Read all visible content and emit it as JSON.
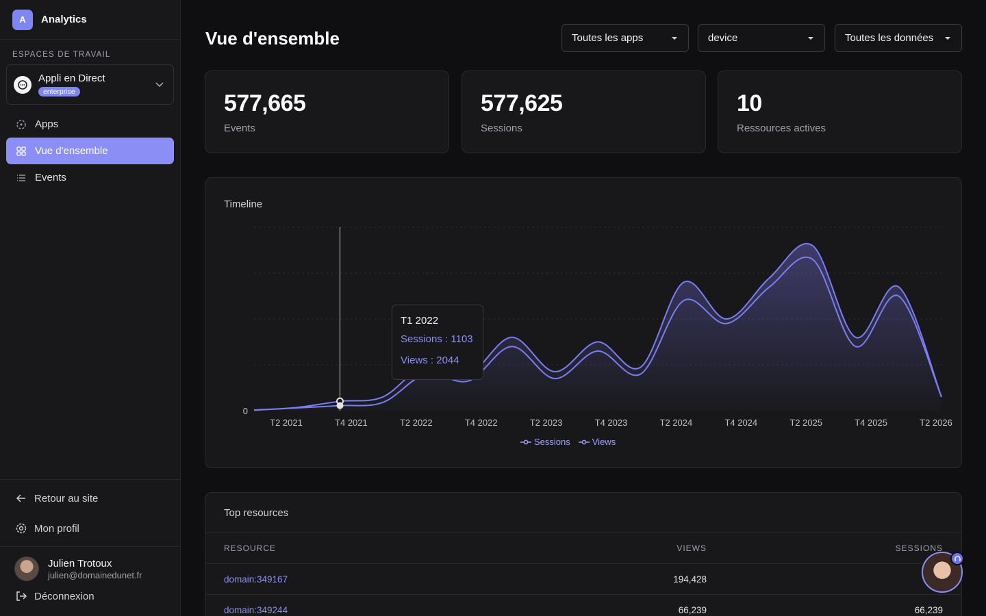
{
  "app": {
    "logo_letter": "A",
    "name": "Analytics"
  },
  "sidebar": {
    "section_label": "ESPACES DE TRAVAIL",
    "workspace": {
      "name": "Appli en Direct",
      "badge": "enterprise"
    },
    "items": [
      {
        "label": "Apps",
        "icon": "apps-icon",
        "active": false
      },
      {
        "label": "Vue d'ensemble",
        "icon": "grid-icon",
        "active": true
      },
      {
        "label": "Events",
        "icon": "list-icon",
        "active": false
      }
    ],
    "bottom_links": [
      {
        "label": "Retour au site",
        "icon": "arrow-left-icon"
      },
      {
        "label": "Mon profil",
        "icon": "gear-icon"
      }
    ],
    "user": {
      "name": "Julien Trotoux",
      "email": "julien@domainedunet.fr"
    },
    "logout_label": "Déconnexion"
  },
  "header": {
    "title": "Vue d'ensemble",
    "filters": [
      {
        "value": "Toutes les apps"
      },
      {
        "value": "device"
      },
      {
        "value": "Toutes les données"
      }
    ]
  },
  "stats": [
    {
      "value": "577,665",
      "label": "Events"
    },
    {
      "value": "577,625",
      "label": "Sessions"
    },
    {
      "value": "10",
      "label": "Ressources actives"
    }
  ],
  "timeline": {
    "title": "Timeline",
    "tooltip": {
      "title": "T1 2022",
      "sessions": "Sessions : 1103",
      "views": "Views : 2044"
    },
    "legend": [
      "Sessions",
      "Views"
    ],
    "colors": {
      "accent": "#8b8ff5",
      "line": "#7a7ef0"
    }
  },
  "chart_data": {
    "type": "area",
    "yticks": [
      "",
      "",
      "",
      "",
      "0"
    ],
    "xticks": [
      "T2 2021",
      "T4 2021",
      "T2 2022",
      "T4 2022",
      "T2 2023",
      "T4 2023",
      "T2 2024",
      "T4 2024",
      "T2 2025",
      "T4 2025",
      "T2 2026"
    ],
    "series": [
      {
        "name": "Sessions",
        "values": [
          100,
          600,
          1103,
          1800,
          8000,
          6500,
          14000,
          7000,
          13000,
          8000,
          24000,
          19000,
          27000,
          33000,
          14000,
          25000,
          3000
        ]
      },
      {
        "name": "Views",
        "values": [
          150,
          700,
          2044,
          3000,
          10000,
          8000,
          16000,
          8500,
          15000,
          9500,
          28000,
          20000,
          29000,
          36000,
          16000,
          27000,
          3000
        ]
      }
    ],
    "ylim": [
      0,
      40000
    ]
  },
  "top_resources": {
    "title": "Top resources",
    "columns": [
      "RESOURCE",
      "VIEWS",
      "SESSIONS"
    ],
    "rows": [
      {
        "resource": "domain:349167",
        "views": "194,428",
        "sessions": "194"
      },
      {
        "resource": "domain:349244",
        "views": "66,239",
        "sessions": "66,239"
      }
    ]
  }
}
